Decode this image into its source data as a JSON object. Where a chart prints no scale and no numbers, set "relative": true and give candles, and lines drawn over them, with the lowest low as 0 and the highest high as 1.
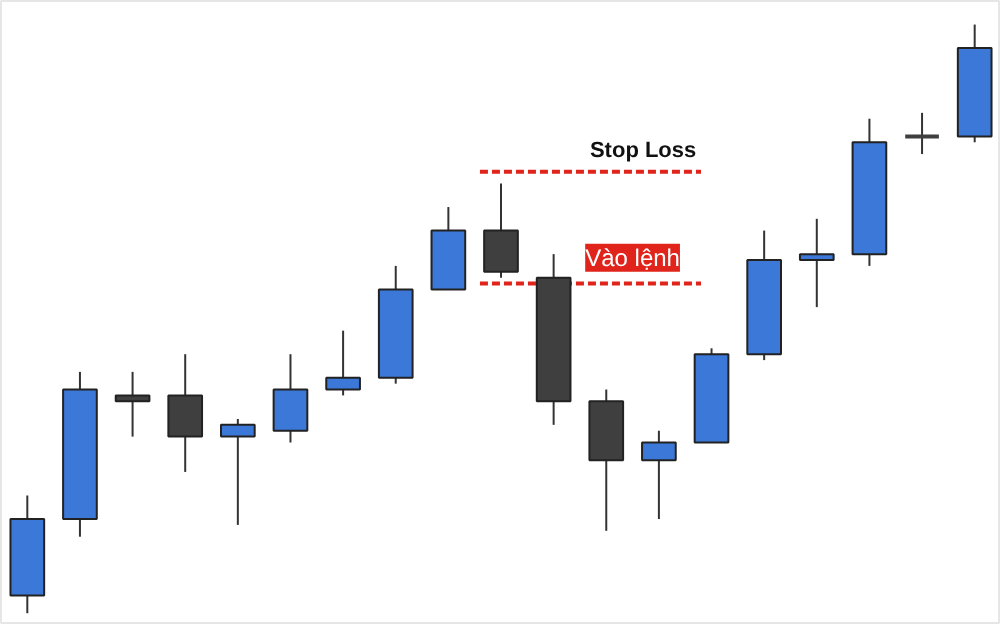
{
  "chart_data": {
    "type": "candlestick",
    "relative": true,
    "categories": [
      null,
      null,
      null,
      null,
      null,
      null,
      null,
      null,
      null,
      null,
      null,
      null,
      null,
      null,
      null,
      null,
      null,
      null,
      null
    ],
    "ohlc": [
      [
        0.03,
        0.2,
        0,
        0.16
      ],
      [
        0.16,
        0.41,
        0.13,
        0.38
      ],
      [
        0.37,
        0.41,
        0.3,
        0.36
      ],
      [
        0.37,
        0.44,
        0.24,
        0.3
      ],
      [
        0.3,
        0.33,
        0.15,
        0.32
      ],
      [
        0.31,
        0.44,
        0.29,
        0.38
      ],
      [
        0.38,
        0.48,
        0.37,
        0.4
      ],
      [
        0.4,
        0.59,
        0.39,
        0.55
      ],
      [
        0.55,
        0.69,
        0.55,
        0.65
      ],
      [
        0.65,
        0.73,
        0.57,
        0.58
      ],
      [
        0.57,
        0.61,
        0.32,
        0.36
      ],
      [
        0.36,
        0.38,
        0.14,
        0.26
      ],
      [
        0.26,
        0.31,
        0.16,
        0.29
      ],
      [
        0.29,
        0.45,
        0.29,
        0.44
      ],
      [
        0.44,
        0.65,
        0.43,
        0.6
      ],
      [
        0.6,
        0.67,
        0.52,
        0.61
      ],
      [
        0.61,
        0.84,
        0.59,
        0.8
      ],
      [
        0.81,
        0.85,
        0.78,
        0.81
      ],
      [
        0.81,
        1,
        0.8,
        0.96
      ]
    ],
    "colors": [
      "#3b78d8",
      "#3b78d8",
      "#3f3f3f",
      "#3f3f3f",
      "#3b78d8",
      "#3b78d8",
      "#3b78d8",
      "#3b78d8",
      "#3b78d8",
      "#3f3f3f",
      "#3f3f3f",
      "#3f3f3f",
      "#3b78d8",
      "#3b78d8",
      "#3b78d8",
      "#3b78d8",
      "#3b78d8",
      "#3f3f3f",
      "#3b78d8"
    ],
    "ref_lines": [
      {
        "axis": "y",
        "value": 0.75,
        "label": "Stop Loss",
        "color": "#e0241b",
        "line_style": "dashed"
      },
      {
        "axis": "y",
        "value": 0.56,
        "label": "Vào lệnh",
        "color": "#e0241b",
        "line_style": "dashed"
      }
    ]
  }
}
